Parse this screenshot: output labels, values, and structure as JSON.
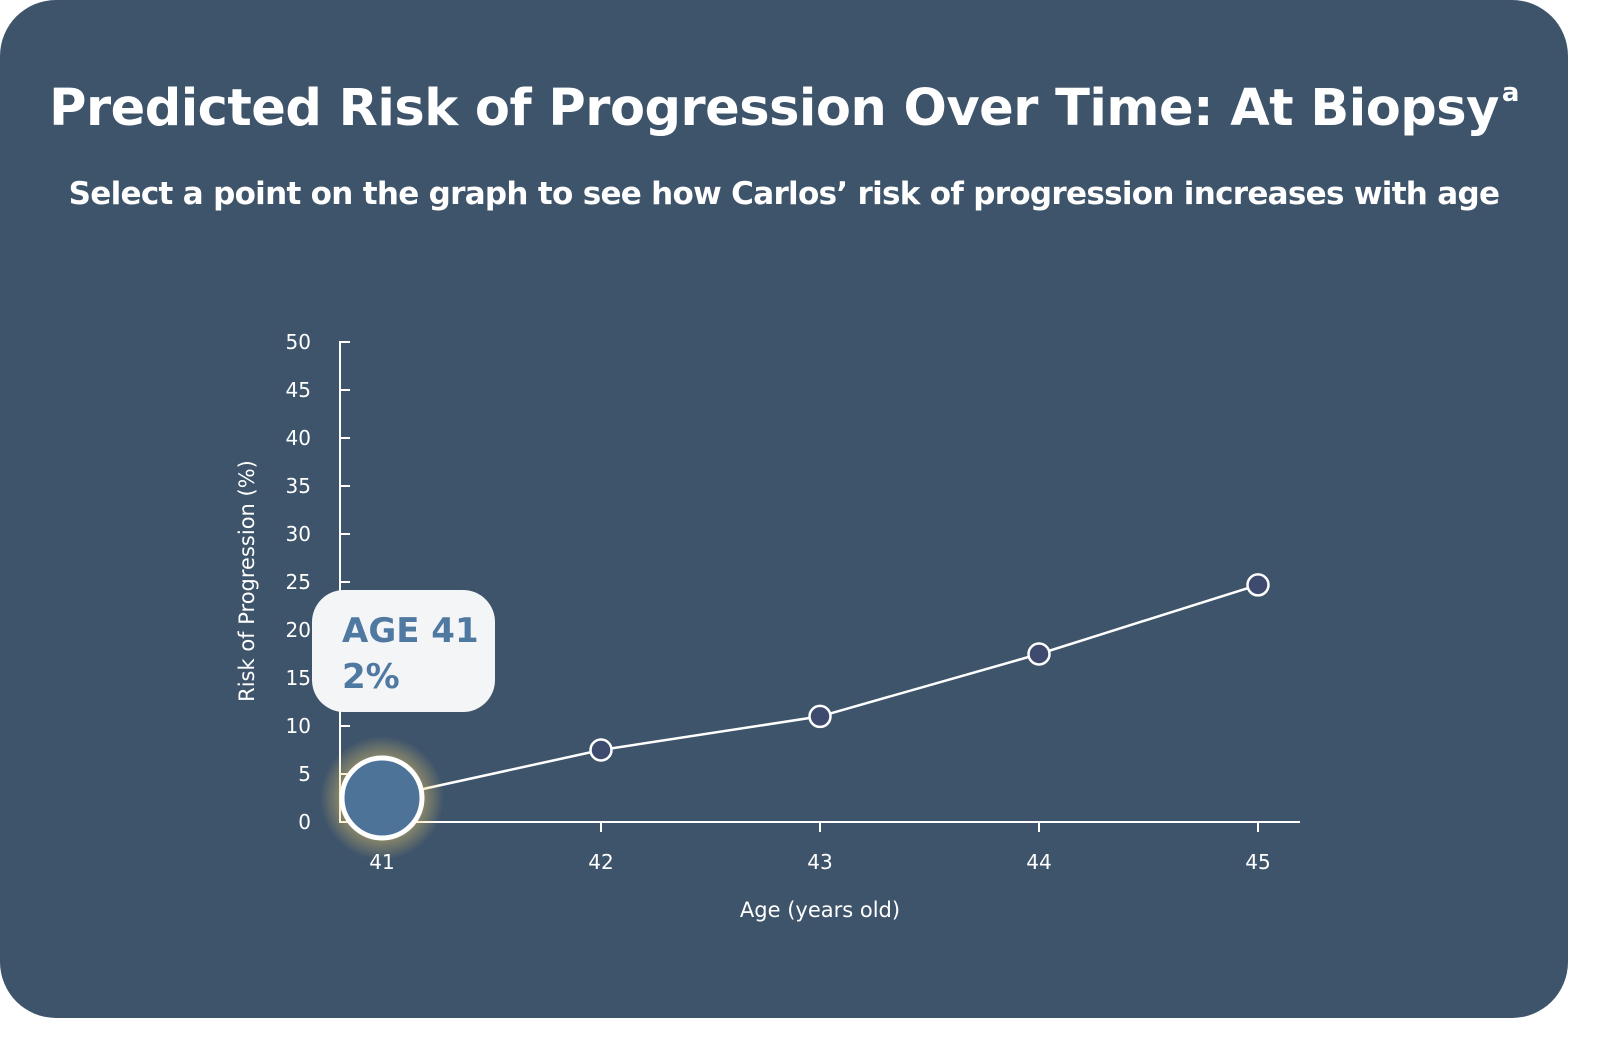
{
  "colors": {
    "background": "#3e546b",
    "foreground": "#ffffff",
    "point_fill": "#3f4b6e",
    "selected_point_fill": "#4d7399",
    "selected_glow": "#f3cf6a",
    "tooltip_bg": "#f4f5f7",
    "tooltip_text": "#5079a2"
  },
  "header": {
    "title": "Predicted Risk of Progression Over Time: At Biopsy",
    "title_superscript": "a",
    "subtitle": "Select a point on the graph to see how Carlos’ risk of progression increases with age"
  },
  "tooltip": {
    "age_label": "AGE 41",
    "value_label": "2%"
  },
  "chart_data": {
    "type": "line",
    "title": "Predicted Risk of Progression Over Time: At Biopsy",
    "xlabel": "Age (years old)",
    "ylabel": "Risk of Progression (%)",
    "categories": [
      "41",
      "42",
      "43",
      "44",
      "45"
    ],
    "x": [
      41,
      42,
      43,
      44,
      45
    ],
    "y": [
      2.5,
      7.5,
      11,
      17.5,
      24.7
    ],
    "y_ticks": [
      0,
      5,
      10,
      15,
      20,
      25,
      30,
      35,
      40,
      45,
      50
    ],
    "ylim": [
      0,
      50
    ],
    "xlim": [
      40.8,
      45.2
    ],
    "grid": false,
    "legend": "none",
    "selected_index": 0
  }
}
